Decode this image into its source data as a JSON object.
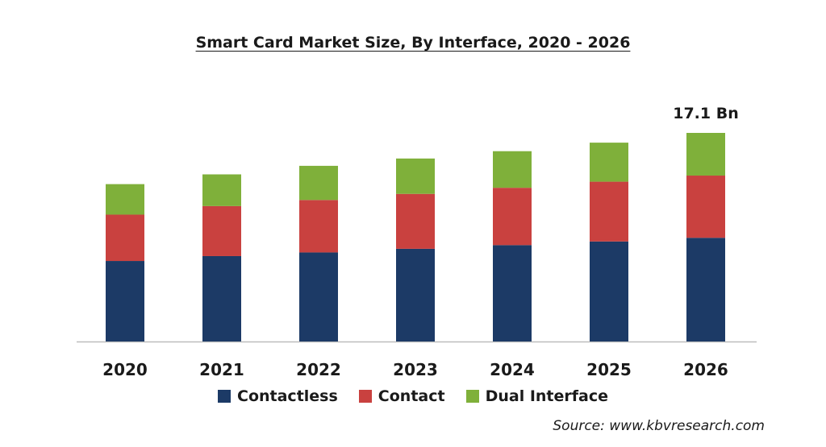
{
  "chart_data": {
    "type": "bar",
    "stacked": true,
    "title": "Smart Card Market Size, By Interface, 2020 - 2026",
    "categories": [
      "2020",
      "2021",
      "2022",
      "2023",
      "2024",
      "2025",
      "2026"
    ],
    "series": [
      {
        "name": "Contactless",
        "color": "#1c3a66",
        "values": [
          6.6,
          7.0,
          7.3,
          7.6,
          7.9,
          8.2,
          8.5
        ]
      },
      {
        "name": "Contact",
        "color": "#c9413f",
        "values": [
          3.8,
          4.1,
          4.3,
          4.5,
          4.7,
          4.9,
          5.1
        ]
      },
      {
        "name": "Dual Interface",
        "color": "#7fb03a",
        "values": [
          2.5,
          2.6,
          2.8,
          2.9,
          3.0,
          3.2,
          3.5
        ]
      }
    ],
    "annotations": [
      {
        "category": "2026",
        "text": "17.1 Bn"
      }
    ],
    "ylim": [
      0,
      17.1
    ],
    "grid": false,
    "legend_position": "bottom"
  },
  "source": "Source: www.kbvresearch.com"
}
